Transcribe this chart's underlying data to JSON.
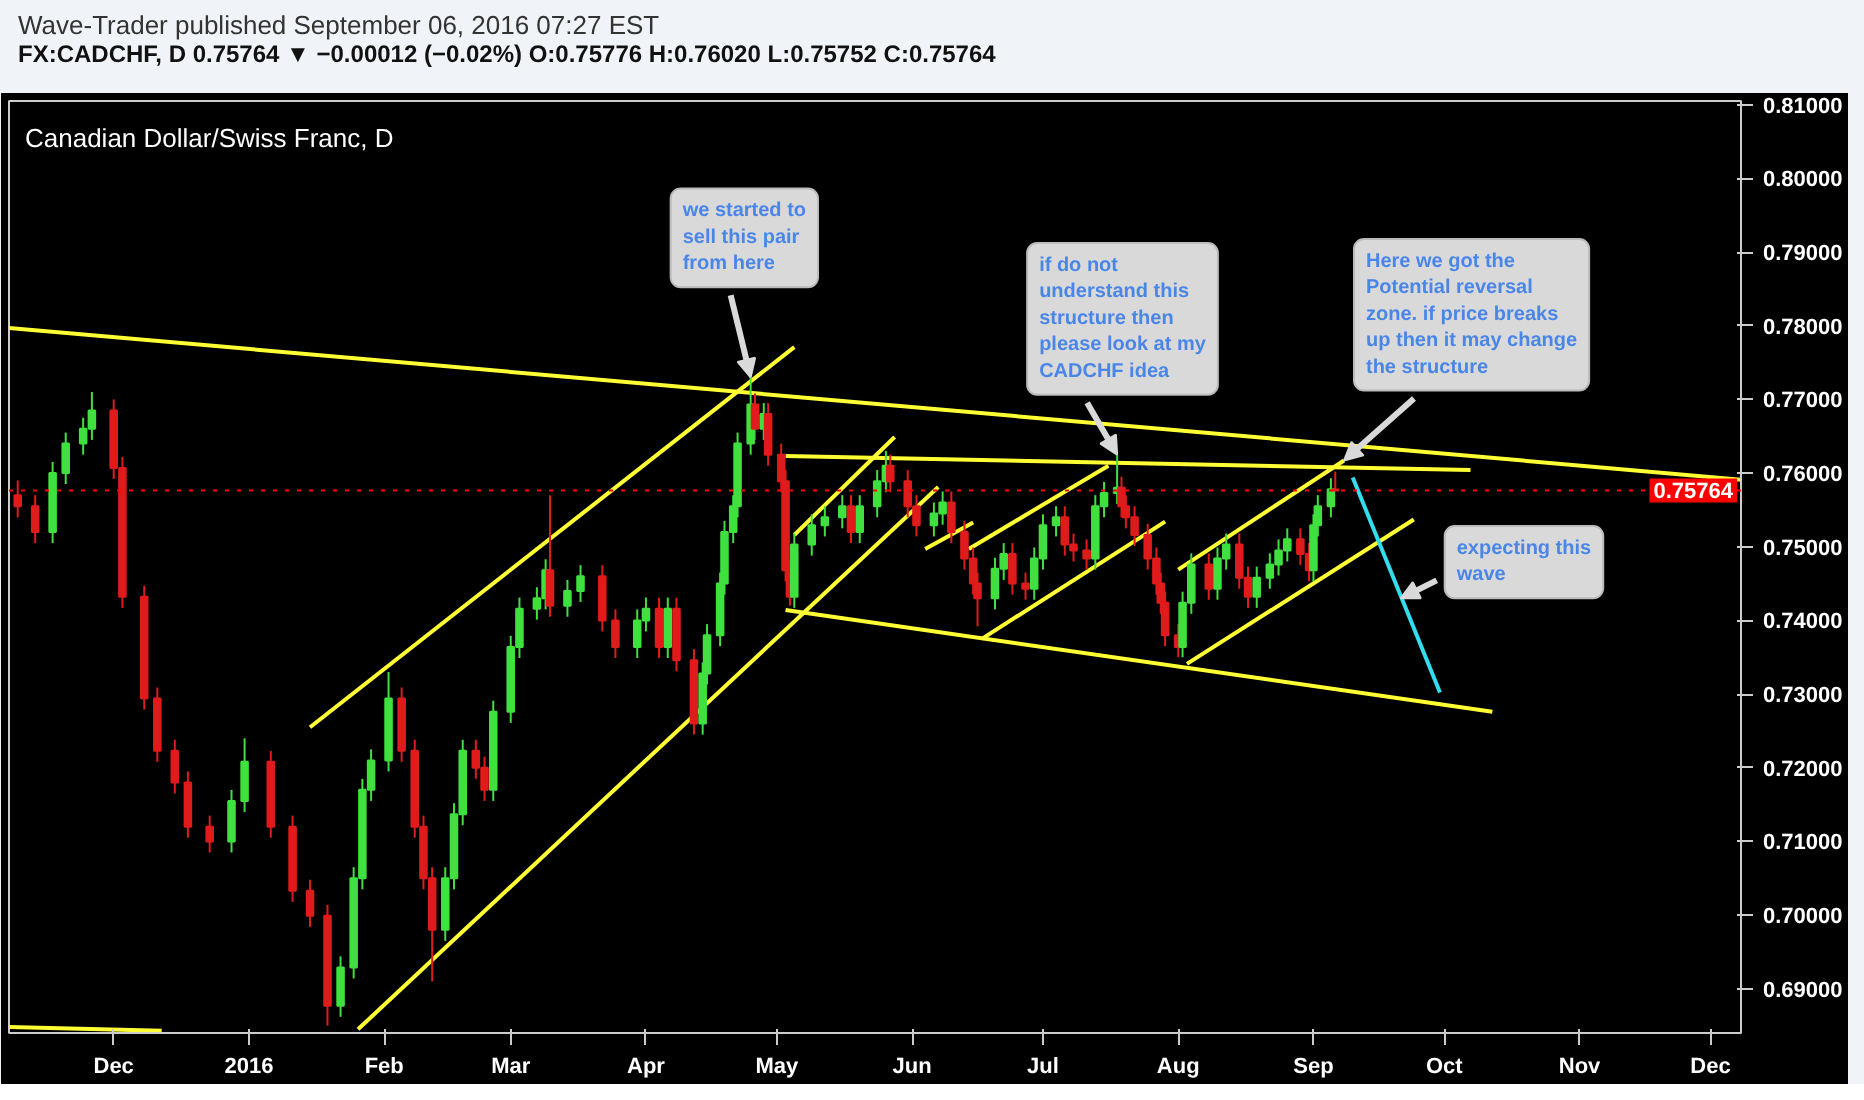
{
  "chart_data": {
    "type": "candlestick",
    "title": "Canadian Dollar/Swiss Franc, D",
    "subtitle": "FX:CADCHF, D 0.75764 ▼ −0.00012 (−0.02%) O:0.75776 H:0.76020 L:0.75752 C:0.75764",
    "annotations": [
      "Wave-Trader published September 06, 2016 07:27 EST",
      {
        "text": "we started to sell this pair from here",
        "x": "2016-04-25",
        "y": 0.773
      },
      {
        "text": "if do not understand this structure then please look at my CADCHF idea",
        "x": "2016-07-18",
        "y": 0.7625
      },
      {
        "text": "Here we got the Potential reversal zone. if price breaks up then it may change the structure",
        "x": "2016-09-08",
        "y": 0.7617
      },
      {
        "text": "expecting this wave",
        "x": "2016-09-21",
        "y": 0.743
      }
    ],
    "x": [
      "2015-11-09",
      "2015-11-13",
      "2015-11-17",
      "2015-11-20",
      "2015-11-24",
      "2015-11-26",
      "2015-12-01",
      "2015-12-03",
      "2015-12-08",
      "2015-12-11",
      "2015-12-15",
      "2015-12-18",
      "2015-12-23",
      "2015-12-28",
      "2015-12-31",
      "2016-01-06",
      "2016-01-11",
      "2016-01-15",
      "2016-01-19",
      "2016-01-22",
      "2016-01-25",
      "2016-01-27",
      "2016-01-29",
      "2016-02-02",
      "2016-02-05",
      "2016-02-08",
      "2016-02-10",
      "2016-02-12",
      "2016-02-15",
      "2016-02-17",
      "2016-02-19",
      "2016-02-22",
      "2016-02-24",
      "2016-02-26",
      "2016-03-01",
      "2016-03-03",
      "2016-03-07",
      "2016-03-09",
      "2016-03-10",
      "2016-03-14",
      "2016-03-17",
      "2016-03-22",
      "2016-03-25",
      "2016-03-30",
      "2016-04-01",
      "2016-04-04",
      "2016-04-06",
      "2016-04-08",
      "2016-04-12",
      "2016-04-14",
      "2016-04-15",
      "2016-04-18",
      "2016-04-19",
      "2016-04-21",
      "2016-04-22",
      "2016-04-25",
      "2016-04-26",
      "2016-04-28",
      "2016-04-29",
      "2016-05-02",
      "2016-05-03",
      "2016-05-04",
      "2016-05-05",
      "2016-05-09",
      "2016-05-12",
      "2016-05-16",
      "2016-05-18",
      "2016-05-20",
      "2016-05-24",
      "2016-05-26",
      "2016-05-27",
      "2016-05-31",
      "2016-06-02",
      "2016-06-06",
      "2016-06-08",
      "2016-06-10",
      "2016-06-13",
      "2016-06-15",
      "2016-06-16",
      "2016-06-20",
      "2016-06-22",
      "2016-06-24",
      "2016-06-27",
      "2016-06-29",
      "2016-07-01",
      "2016-07-04",
      "2016-07-06",
      "2016-07-08",
      "2016-07-11",
      "2016-07-13",
      "2016-07-15",
      "2016-07-18",
      "2016-07-19",
      "2016-07-20",
      "2016-07-22",
      "2016-07-25",
      "2016-07-27",
      "2016-07-28",
      "2016-07-29",
      "2016-08-01",
      "2016-08-02",
      "2016-08-04",
      "2016-08-08",
      "2016-08-10",
      "2016-08-12",
      "2016-08-15",
      "2016-08-17",
      "2016-08-19",
      "2016-08-22",
      "2016-08-24",
      "2016-08-26",
      "2016-08-29",
      "2016-08-31",
      "2016-09-01",
      "2016-09-02",
      "2016-09-05",
      "2016-09-06"
    ],
    "ohlc": [
      [
        0.757,
        0.759,
        0.754,
        0.7555
      ],
      [
        0.7555,
        0.757,
        0.7505,
        0.752
      ],
      [
        0.752,
        0.7615,
        0.7505,
        0.76
      ],
      [
        0.76,
        0.7655,
        0.7585,
        0.764
      ],
      [
        0.764,
        0.7675,
        0.7625,
        0.766
      ],
      [
        0.766,
        0.771,
        0.7645,
        0.7685
      ],
      [
        0.7685,
        0.77,
        0.7592,
        0.7607
      ],
      [
        0.7607,
        0.7622,
        0.7417,
        0.7432
      ],
      [
        0.7432,
        0.7447,
        0.7279,
        0.7294
      ],
      [
        0.7294,
        0.7309,
        0.7208,
        0.7223
      ],
      [
        0.7223,
        0.7238,
        0.7165,
        0.718
      ],
      [
        0.718,
        0.7195,
        0.7105,
        0.712
      ],
      [
        0.712,
        0.7135,
        0.7085,
        0.71
      ],
      [
        0.71,
        0.717,
        0.7085,
        0.7155
      ],
      [
        0.7155,
        0.724,
        0.714,
        0.7208
      ],
      [
        0.7208,
        0.7223,
        0.7105,
        0.712
      ],
      [
        0.712,
        0.7135,
        0.7018,
        0.7033
      ],
      [
        0.7033,
        0.7048,
        0.6984,
        0.6999
      ],
      [
        0.6999,
        0.7014,
        0.685,
        0.6877
      ],
      [
        0.6877,
        0.6944,
        0.6862,
        0.6929
      ],
      [
        0.6929,
        0.7065,
        0.6914,
        0.705
      ],
      [
        0.705,
        0.7185,
        0.7035,
        0.717
      ],
      [
        0.717,
        0.7225,
        0.7155,
        0.721
      ],
      [
        0.721,
        0.733,
        0.7195,
        0.7294
      ],
      [
        0.7294,
        0.7309,
        0.7208,
        0.7223
      ],
      [
        0.7223,
        0.7238,
        0.7105,
        0.712
      ],
      [
        0.712,
        0.7135,
        0.7035,
        0.705
      ],
      [
        0.705,
        0.7065,
        0.691,
        0.698
      ],
      [
        0.698,
        0.7065,
        0.6965,
        0.705
      ],
      [
        0.705,
        0.7152,
        0.7035,
        0.7137
      ],
      [
        0.7137,
        0.7238,
        0.7122,
        0.7223
      ],
      [
        0.7223,
        0.7238,
        0.7185,
        0.72
      ],
      [
        0.72,
        0.7215,
        0.7155,
        0.717
      ],
      [
        0.717,
        0.7291,
        0.7155,
        0.7276
      ],
      [
        0.7276,
        0.7379,
        0.7261,
        0.7364
      ],
      [
        0.7364,
        0.7431,
        0.7349,
        0.7416
      ],
      [
        0.7416,
        0.7445,
        0.7401,
        0.743
      ],
      [
        0.743,
        0.7483,
        0.7415,
        0.7468
      ],
      [
        0.7468,
        0.757,
        0.7405,
        0.742
      ],
      [
        0.742,
        0.7455,
        0.7405,
        0.744
      ],
      [
        0.744,
        0.7475,
        0.7425,
        0.746
      ],
      [
        0.746,
        0.7475,
        0.7385,
        0.74
      ],
      [
        0.74,
        0.7415,
        0.7349,
        0.7364
      ],
      [
        0.7364,
        0.7415,
        0.7349,
        0.74
      ],
      [
        0.74,
        0.7431,
        0.7385,
        0.7416
      ],
      [
        0.7416,
        0.7431,
        0.7349,
        0.7364
      ],
      [
        0.7364,
        0.7431,
        0.7349,
        0.7416
      ],
      [
        0.7416,
        0.7431,
        0.7331,
        0.7346
      ],
      [
        0.7346,
        0.7361,
        0.7245,
        0.726
      ],
      [
        0.726,
        0.7343,
        0.7245,
        0.7328
      ],
      [
        0.7328,
        0.7395,
        0.7313,
        0.738
      ],
      [
        0.738,
        0.7465,
        0.7365,
        0.745
      ],
      [
        0.745,
        0.7535,
        0.7435,
        0.752
      ],
      [
        0.752,
        0.757,
        0.7505,
        0.7555
      ],
      [
        0.7555,
        0.7655,
        0.754,
        0.764
      ],
      [
        0.764,
        0.773,
        0.7625,
        0.7693
      ],
      [
        0.7693,
        0.7708,
        0.7645,
        0.766
      ],
      [
        0.766,
        0.7695,
        0.7645,
        0.768
      ],
      [
        0.768,
        0.7695,
        0.761,
        0.7625
      ],
      [
        0.7625,
        0.764,
        0.7574,
        0.7589
      ],
      [
        0.7589,
        0.7604,
        0.7453,
        0.7468
      ],
      [
        0.7468,
        0.7483,
        0.742,
        0.7432
      ],
      [
        0.7432,
        0.7518,
        0.7417,
        0.7503
      ],
      [
        0.7503,
        0.7544,
        0.7488,
        0.7529
      ],
      [
        0.7529,
        0.7555,
        0.7514,
        0.754
      ],
      [
        0.754,
        0.757,
        0.7525,
        0.7555
      ],
      [
        0.7555,
        0.757,
        0.7505,
        0.752
      ],
      [
        0.752,
        0.757,
        0.7505,
        0.7555
      ],
      [
        0.7555,
        0.7604,
        0.754,
        0.7589
      ],
      [
        0.7589,
        0.763,
        0.7574,
        0.761
      ],
      [
        0.761,
        0.7625,
        0.7574,
        0.7589
      ],
      [
        0.7589,
        0.7604,
        0.754,
        0.7555
      ],
      [
        0.7555,
        0.757,
        0.7514,
        0.7529
      ],
      [
        0.7529,
        0.756,
        0.7514,
        0.7545
      ],
      [
        0.7545,
        0.7575,
        0.753,
        0.756
      ],
      [
        0.756,
        0.7575,
        0.7505,
        0.752
      ],
      [
        0.752,
        0.7535,
        0.7469,
        0.7484
      ],
      [
        0.7484,
        0.7499,
        0.7435,
        0.745
      ],
      [
        0.745,
        0.7465,
        0.7392,
        0.743
      ],
      [
        0.743,
        0.7485,
        0.7415,
        0.747
      ],
      [
        0.747,
        0.7505,
        0.7455,
        0.749
      ],
      [
        0.749,
        0.7505,
        0.7435,
        0.745
      ],
      [
        0.745,
        0.7465,
        0.7428,
        0.7443
      ],
      [
        0.7443,
        0.7499,
        0.7428,
        0.7484
      ],
      [
        0.7484,
        0.7544,
        0.7469,
        0.7529
      ],
      [
        0.7529,
        0.7555,
        0.7514,
        0.754
      ],
      [
        0.754,
        0.7555,
        0.7488,
        0.7503
      ],
      [
        0.7503,
        0.7518,
        0.748,
        0.7495
      ],
      [
        0.7495,
        0.751,
        0.7469,
        0.7484
      ],
      [
        0.7484,
        0.757,
        0.7469,
        0.7555
      ],
      [
        0.7555,
        0.7588,
        0.754,
        0.7573
      ],
      [
        0.7573,
        0.7625,
        0.7558,
        0.758
      ],
      [
        0.758,
        0.7595,
        0.754,
        0.7555
      ],
      [
        0.7555,
        0.757,
        0.7525,
        0.754
      ],
      [
        0.754,
        0.7555,
        0.7501,
        0.7516
      ],
      [
        0.7516,
        0.7531,
        0.7469,
        0.7484
      ],
      [
        0.7484,
        0.7499,
        0.7435,
        0.745
      ],
      [
        0.745,
        0.7465,
        0.7409,
        0.7424
      ],
      [
        0.7424,
        0.7439,
        0.7365,
        0.738
      ],
      [
        0.738,
        0.7395,
        0.735,
        0.7364
      ],
      [
        0.7364,
        0.7439,
        0.735,
        0.7424
      ],
      [
        0.7424,
        0.7491,
        0.7409,
        0.7476
      ],
      [
        0.7476,
        0.7491,
        0.7428,
        0.7443
      ],
      [
        0.7443,
        0.7499,
        0.7428,
        0.7484
      ],
      [
        0.7484,
        0.7518,
        0.7469,
        0.7503
      ],
      [
        0.7503,
        0.7518,
        0.7443,
        0.7458
      ],
      [
        0.7458,
        0.7473,
        0.7417,
        0.7432
      ],
      [
        0.7432,
        0.7473,
        0.7417,
        0.7458
      ],
      [
        0.7458,
        0.7491,
        0.7443,
        0.7476
      ],
      [
        0.7476,
        0.751,
        0.7461,
        0.7495
      ],
      [
        0.7495,
        0.7525,
        0.748,
        0.751
      ],
      [
        0.751,
        0.7525,
        0.7475,
        0.749
      ],
      [
        0.749,
        0.7505,
        0.7453,
        0.7468
      ],
      [
        0.7468,
        0.7544,
        0.7453,
        0.7529
      ],
      [
        0.7529,
        0.757,
        0.7514,
        0.7555
      ],
      [
        0.7555,
        0.7593,
        0.754,
        0.7578
      ],
      [
        0.75776,
        0.7602,
        0.75752,
        0.75764
      ]
    ],
    "series": [
      {
        "type": "line",
        "color": "#ffff33",
        "x": [
          "2015-11-07",
          "2016-12-08"
        ],
        "values": [
          0.7797,
          0.7591
        ]
      },
      {
        "type": "line",
        "color": "#ffff33",
        "x": [
          "2015-11-07",
          "2015-12-12"
        ],
        "values": [
          0.6848,
          0.6843
        ]
      },
      {
        "type": "line",
        "color": "#ffff33",
        "x": [
          "2016-01-15",
          "2016-05-05"
        ],
        "values": [
          0.7255,
          0.7771
        ]
      },
      {
        "type": "line",
        "color": "#ffff33",
        "x": [
          "2016-01-26",
          "2016-06-07"
        ],
        "values": [
          0.6845,
          0.7581
        ]
      },
      {
        "type": "line",
        "color": "#ffff33",
        "x": [
          "2016-05-03",
          "2016-10-07"
        ],
        "values": [
          0.7623,
          0.7604
        ]
      },
      {
        "type": "line",
        "color": "#ffff33",
        "x": [
          "2016-05-03",
          "2016-10-12"
        ],
        "values": [
          0.7414,
          0.7276
        ]
      },
      {
        "type": "line",
        "color": "#ffff33",
        "x": [
          "2016-05-05",
          "2016-05-28"
        ],
        "values": [
          0.7516,
          0.7649
        ]
      },
      {
        "type": "line",
        "color": "#ffff33",
        "x": [
          "2016-06-04",
          "2016-06-15"
        ],
        "values": [
          0.7497,
          0.7533
        ]
      },
      {
        "type": "line",
        "color": "#ffff33",
        "x": [
          "2016-06-14",
          "2016-07-16"
        ],
        "values": [
          0.7497,
          0.761
        ]
      },
      {
        "type": "line",
        "color": "#ffff33",
        "x": [
          "2016-06-17",
          "2016-07-29"
        ],
        "values": [
          0.7375,
          0.7534
        ]
      },
      {
        "type": "line",
        "color": "#ffff33",
        "x": [
          "2016-08-01",
          "2016-09-08"
        ],
        "values": [
          0.7469,
          0.7617
        ]
      },
      {
        "type": "line",
        "color": "#ffff33",
        "x": [
          "2016-08-03",
          "2016-09-24"
        ],
        "values": [
          0.7341,
          0.7537
        ]
      },
      {
        "type": "line",
        "color": "#33ddee",
        "x": [
          "2016-09-10",
          "2016-09-30"
        ],
        "values": [
          0.7594,
          0.7302
        ]
      }
    ],
    "ref_lines": [
      {
        "axis": "y",
        "value": 0.75764,
        "label": "0.75764",
        "color": "#ff0000",
        "line_style": "dotted"
      }
    ],
    "xlim": [
      "2015-11-07",
      "2016-12-08"
    ],
    "xticks": [
      {
        "value": "2015-12-01",
        "label": "Dec"
      },
      {
        "value": "2016-01-01",
        "label": "2016"
      },
      {
        "value": "2016-02-01",
        "label": "Feb"
      },
      {
        "value": "2016-03-01",
        "label": "Mar"
      },
      {
        "value": "2016-04-01",
        "label": "Apr"
      },
      {
        "value": "2016-05-01",
        "label": "May"
      },
      {
        "value": "2016-06-01",
        "label": "Jun"
      },
      {
        "value": "2016-07-01",
        "label": "Jul"
      },
      {
        "value": "2016-08-01",
        "label": "Aug"
      },
      {
        "value": "2016-09-01",
        "label": "Sep"
      },
      {
        "value": "2016-10-01",
        "label": "Oct"
      },
      {
        "value": "2016-11-01",
        "label": "Nov"
      },
      {
        "value": "2016-12-01",
        "label": "Dec"
      }
    ],
    "ylim": [
      0.684,
      0.8105
    ],
    "yticks": [
      {
        "value": 0.69,
        "label": "0.69000"
      },
      {
        "value": 0.7,
        "label": "0.70000"
      },
      {
        "value": 0.71,
        "label": "0.71000"
      },
      {
        "value": 0.72,
        "label": "0.72000"
      },
      {
        "value": 0.73,
        "label": "0.73000"
      },
      {
        "value": 0.74,
        "label": "0.74000"
      },
      {
        "value": 0.75,
        "label": "0.75000"
      },
      {
        "value": 0.76,
        "label": "0.76000"
      },
      {
        "value": 0.77,
        "label": "0.77000"
      },
      {
        "value": 0.78,
        "label": "0.78000"
      },
      {
        "value": 0.79,
        "label": "0.79000"
      },
      {
        "value": 0.8,
        "label": "0.80000"
      },
      {
        "value": 0.81,
        "label": "0.81000"
      }
    ],
    "grid": false
  }
}
